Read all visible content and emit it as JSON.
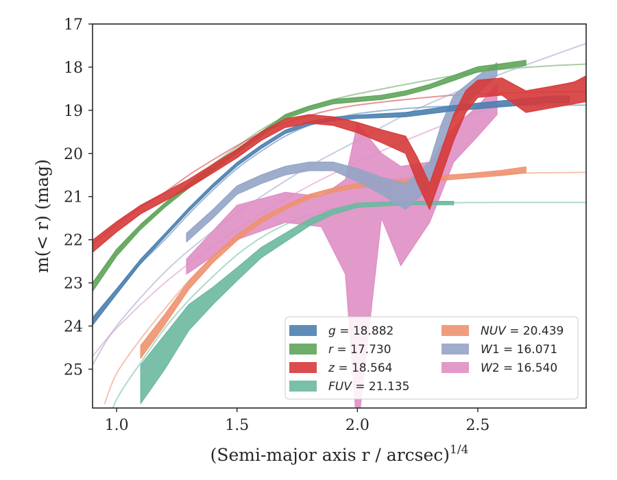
{
  "chart_data": {
    "type": "line",
    "xlabel": "(Semi-major axis r / arcsec)",
    "xlabel_sup": "1/4",
    "ylabel": "m(< r) (mag)",
    "xlim": [
      0.9,
      2.95
    ],
    "ylim": [
      25.9,
      17.0
    ],
    "y_inverted": true,
    "grid": false,
    "legend_position": "lower-right",
    "x_ticks": [
      1.0,
      1.5,
      2.0,
      2.5
    ],
    "x_tick_labels": [
      "1.0",
      "1.5",
      "2.0",
      "2.5"
    ],
    "y_ticks": [
      17,
      18,
      19,
      20,
      21,
      22,
      23,
      24,
      25
    ],
    "y_tick_labels": [
      "17",
      "18",
      "19",
      "20",
      "21",
      "22",
      "23",
      "24",
      "25"
    ],
    "series": [
      {
        "name": "g = 18.882",
        "label_html": "<tspan font-style='italic'>g</tspan> = 18.882",
        "color": "#4C7FB0",
        "band": [
          [
            0.9,
            23.9,
            0.08
          ],
          [
            1.0,
            23.2,
            0.06
          ],
          [
            1.1,
            22.5,
            0.05
          ],
          [
            1.2,
            21.9,
            0.04
          ],
          [
            1.3,
            21.3,
            0.04
          ],
          [
            1.4,
            20.75,
            0.04
          ],
          [
            1.5,
            20.25,
            0.04
          ],
          [
            1.6,
            19.85,
            0.04
          ],
          [
            1.7,
            19.5,
            0.04
          ],
          [
            1.8,
            19.3,
            0.04
          ],
          [
            1.9,
            19.2,
            0.04
          ],
          [
            2.0,
            19.15,
            0.04
          ],
          [
            2.2,
            19.1,
            0.05
          ],
          [
            2.4,
            18.95,
            0.06
          ],
          [
            2.6,
            18.85,
            0.07
          ],
          [
            2.8,
            18.75,
            0.08
          ],
          [
            2.88,
            18.75,
            0.08
          ]
        ],
        "model": [
          [
            0.9,
            23.8
          ],
          [
            1.0,
            23.15
          ],
          [
            1.1,
            22.55
          ],
          [
            1.2,
            22.0
          ],
          [
            1.3,
            21.4
          ],
          [
            1.4,
            20.85
          ],
          [
            1.5,
            20.35
          ],
          [
            1.6,
            19.95
          ],
          [
            1.7,
            19.6
          ],
          [
            1.8,
            19.35
          ],
          [
            1.9,
            19.2
          ],
          [
            2.0,
            19.08
          ],
          [
            2.2,
            18.96
          ],
          [
            2.4,
            18.9
          ],
          [
            2.6,
            18.885
          ],
          [
            2.95,
            18.882
          ]
        ]
      },
      {
        "name": "r = 17.730",
        "label_html": "<tspan font-style='italic'>r</tspan> = 17.730",
        "color": "#5FA55A",
        "band": [
          [
            0.9,
            23.1,
            0.1
          ],
          [
            1.0,
            22.3,
            0.08
          ],
          [
            1.1,
            21.7,
            0.06
          ],
          [
            1.2,
            21.2,
            0.05
          ],
          [
            1.3,
            20.75,
            0.05
          ],
          [
            1.4,
            20.35,
            0.05
          ],
          [
            1.5,
            19.95,
            0.05
          ],
          [
            1.6,
            19.55,
            0.05
          ],
          [
            1.7,
            19.15,
            0.05
          ],
          [
            1.8,
            18.95,
            0.05
          ],
          [
            1.9,
            18.8,
            0.05
          ],
          [
            2.0,
            18.75,
            0.05
          ],
          [
            2.1,
            18.7,
            0.05
          ],
          [
            2.2,
            18.6,
            0.05
          ],
          [
            2.3,
            18.45,
            0.05
          ],
          [
            2.4,
            18.25,
            0.06
          ],
          [
            2.5,
            18.05,
            0.06
          ],
          [
            2.6,
            17.98,
            0.06
          ],
          [
            2.7,
            17.9,
            0.06
          ]
        ],
        "model": [
          [
            0.9,
            23.0
          ],
          [
            1.0,
            22.3
          ],
          [
            1.1,
            21.7
          ],
          [
            1.2,
            21.2
          ],
          [
            1.3,
            20.7
          ],
          [
            1.4,
            20.25
          ],
          [
            1.5,
            19.85
          ],
          [
            1.6,
            19.45
          ],
          [
            1.7,
            19.15
          ],
          [
            1.8,
            18.92
          ],
          [
            1.9,
            18.75
          ],
          [
            2.0,
            18.62
          ],
          [
            2.2,
            18.4
          ],
          [
            2.4,
            18.2
          ],
          [
            2.6,
            18.05
          ],
          [
            2.8,
            17.97
          ],
          [
            2.95,
            17.93
          ]
        ]
      },
      {
        "name": "z = 18.564",
        "label_html": "<tspan font-style='italic'>z</tspan> = 18.564",
        "color": "#D63A3A",
        "band": [
          [
            0.9,
            22.15,
            0.14
          ],
          [
            1.0,
            21.7,
            0.12
          ],
          [
            1.1,
            21.3,
            0.1
          ],
          [
            1.2,
            21.0,
            0.1
          ],
          [
            1.3,
            20.7,
            0.1
          ],
          [
            1.4,
            20.35,
            0.1
          ],
          [
            1.5,
            20.0,
            0.1
          ],
          [
            1.6,
            19.6,
            0.1
          ],
          [
            1.7,
            19.3,
            0.1
          ],
          [
            1.8,
            19.2,
            0.1
          ],
          [
            1.9,
            19.25,
            0.1
          ],
          [
            2.0,
            19.4,
            0.12
          ],
          [
            2.1,
            19.6,
            0.15
          ],
          [
            2.2,
            19.8,
            0.2
          ],
          [
            2.25,
            20.4,
            0.3
          ],
          [
            2.3,
            21.0,
            0.3
          ],
          [
            2.35,
            20.2,
            0.3
          ],
          [
            2.4,
            19.4,
            0.3
          ],
          [
            2.45,
            18.8,
            0.25
          ],
          [
            2.5,
            18.5,
            0.2
          ],
          [
            2.6,
            18.45,
            0.2
          ],
          [
            2.7,
            18.8,
            0.25
          ],
          [
            2.8,
            18.7,
            0.25
          ],
          [
            2.9,
            18.6,
            0.25
          ],
          [
            2.95,
            18.5,
            0.3
          ]
        ],
        "model": [
          [
            0.9,
            22.1
          ],
          [
            1.0,
            21.65
          ],
          [
            1.1,
            21.25
          ],
          [
            1.2,
            20.9
          ],
          [
            1.3,
            20.5
          ],
          [
            1.4,
            20.15
          ],
          [
            1.5,
            19.82
          ],
          [
            1.6,
            19.52
          ],
          [
            1.7,
            19.3
          ],
          [
            1.8,
            19.12
          ],
          [
            1.9,
            18.98
          ],
          [
            2.0,
            18.88
          ],
          [
            2.2,
            18.75
          ],
          [
            2.4,
            18.65
          ],
          [
            2.6,
            18.6
          ],
          [
            2.95,
            18.564
          ]
        ]
      },
      {
        "name": "FUV = 21.135",
        "label_html": "<tspan font-style='italic'>FUV</tspan> = 21.135",
        "color": "#6BB9A0",
        "band": [
          [
            1.1,
            25.35,
            0.45
          ],
          [
            1.2,
            24.6,
            0.4
          ],
          [
            1.3,
            23.8,
            0.3
          ],
          [
            1.4,
            23.3,
            0.2
          ],
          [
            1.5,
            22.8,
            0.15
          ],
          [
            1.6,
            22.3,
            0.12
          ],
          [
            1.7,
            21.95,
            0.1
          ],
          [
            1.8,
            21.6,
            0.08
          ],
          [
            1.9,
            21.35,
            0.06
          ],
          [
            2.0,
            21.2,
            0.05
          ],
          [
            2.2,
            21.15,
            0.04
          ],
          [
            2.4,
            21.15,
            0.04
          ]
        ],
        "model": [
          [
            0.95,
            26.5
          ],
          [
            1.0,
            25.7
          ],
          [
            1.1,
            24.85
          ],
          [
            1.2,
            24.05
          ],
          [
            1.3,
            23.4
          ],
          [
            1.4,
            22.85
          ],
          [
            1.5,
            22.35
          ],
          [
            1.6,
            21.95
          ],
          [
            1.7,
            21.65
          ],
          [
            1.8,
            21.42
          ],
          [
            1.9,
            21.28
          ],
          [
            2.0,
            21.2
          ],
          [
            2.2,
            21.15
          ],
          [
            2.6,
            21.137
          ],
          [
            2.95,
            21.135
          ]
        ]
      },
      {
        "name": "NUV = 20.439",
        "label_html": "<tspan font-style='italic'>NUV</tspan> = 20.439",
        "color": "#EE9270",
        "band": [
          [
            1.1,
            24.6,
            0.15
          ],
          [
            1.2,
            23.85,
            0.12
          ],
          [
            1.3,
            23.05,
            0.1
          ],
          [
            1.4,
            22.45,
            0.08
          ],
          [
            1.5,
            21.95,
            0.07
          ],
          [
            1.6,
            21.55,
            0.06
          ],
          [
            1.7,
            21.25,
            0.05
          ],
          [
            1.8,
            21.0,
            0.05
          ],
          [
            1.9,
            20.85,
            0.05
          ],
          [
            2.0,
            20.75,
            0.05
          ],
          [
            2.2,
            20.65,
            0.05
          ],
          [
            2.4,
            20.55,
            0.05
          ],
          [
            2.6,
            20.45,
            0.06
          ],
          [
            2.7,
            20.38,
            0.07
          ]
        ],
        "model": [
          [
            0.95,
            25.8
          ],
          [
            1.0,
            25.1
          ],
          [
            1.1,
            24.3
          ],
          [
            1.2,
            23.6
          ],
          [
            1.3,
            22.95
          ],
          [
            1.4,
            22.4
          ],
          [
            1.5,
            21.95
          ],
          [
            1.6,
            21.55
          ],
          [
            1.7,
            21.25
          ],
          [
            1.8,
            21.0
          ],
          [
            1.9,
            20.82
          ],
          [
            2.0,
            20.7
          ],
          [
            2.2,
            20.56
          ],
          [
            2.4,
            20.49
          ],
          [
            2.6,
            20.46
          ],
          [
            2.95,
            20.439
          ]
        ]
      },
      {
        "name": "W1 = 16.071",
        "label_html": "<tspan font-style='italic'>W</tspan>1 = 16.071",
        "color": "#95A4C6",
        "band": [
          [
            1.29,
            21.95,
            0.1
          ],
          [
            1.4,
            21.4,
            0.1
          ],
          [
            1.5,
            20.85,
            0.1
          ],
          [
            1.6,
            20.6,
            0.1
          ],
          [
            1.7,
            20.4,
            0.1
          ],
          [
            1.8,
            20.3,
            0.1
          ],
          [
            1.9,
            20.3,
            0.1
          ],
          [
            2.0,
            20.5,
            0.15
          ],
          [
            2.1,
            20.75,
            0.2
          ],
          [
            2.2,
            21.0,
            0.3
          ],
          [
            2.3,
            20.5,
            0.3
          ],
          [
            2.35,
            19.6,
            0.3
          ],
          [
            2.4,
            18.9,
            0.25
          ],
          [
            2.5,
            18.4,
            0.2
          ],
          [
            2.58,
            18.05,
            0.15
          ]
        ],
        "model": [
          [
            0.9,
            24.9
          ],
          [
            1.0,
            24.0
          ],
          [
            1.2,
            22.75
          ],
          [
            1.4,
            21.8
          ],
          [
            1.6,
            21.0
          ],
          [
            1.8,
            20.3
          ],
          [
            2.0,
            19.7
          ],
          [
            2.2,
            19.1
          ],
          [
            2.4,
            18.6
          ],
          [
            2.6,
            18.15
          ],
          [
            2.8,
            17.75
          ],
          [
            2.95,
            17.45
          ]
        ]
      },
      {
        "name": "W2 = 16.540",
        "label_html": "<tspan font-style='italic'>W</tspan>2 = 16.540",
        "color": "#DE8FC4",
        "band_explicit": [
          [
            1.29,
            22.45,
            22.8
          ],
          [
            1.5,
            21.2,
            22.0
          ],
          [
            1.7,
            20.9,
            21.6
          ],
          [
            1.85,
            21.0,
            21.7
          ],
          [
            1.95,
            20.6,
            22.8
          ],
          [
            2.0,
            19.3,
            26.5
          ],
          [
            2.1,
            20.0,
            21.5
          ],
          [
            2.18,
            20.3,
            22.6
          ],
          [
            2.3,
            20.2,
            21.6
          ],
          [
            2.4,
            19.4,
            20.2
          ],
          [
            2.5,
            18.9,
            19.6
          ],
          [
            2.58,
            18.4,
            19.1
          ]
        ],
        "model": [
          [
            0.9,
            24.7
          ],
          [
            1.0,
            24.05
          ],
          [
            1.2,
            23.0
          ],
          [
            1.4,
            22.15
          ],
          [
            1.6,
            21.4
          ],
          [
            1.8,
            20.75
          ],
          [
            2.0,
            20.2
          ],
          [
            2.2,
            19.7
          ],
          [
            2.4,
            19.25
          ],
          [
            2.6,
            18.85
          ],
          [
            2.8,
            18.5
          ],
          [
            2.95,
            18.25
          ]
        ]
      }
    ]
  }
}
